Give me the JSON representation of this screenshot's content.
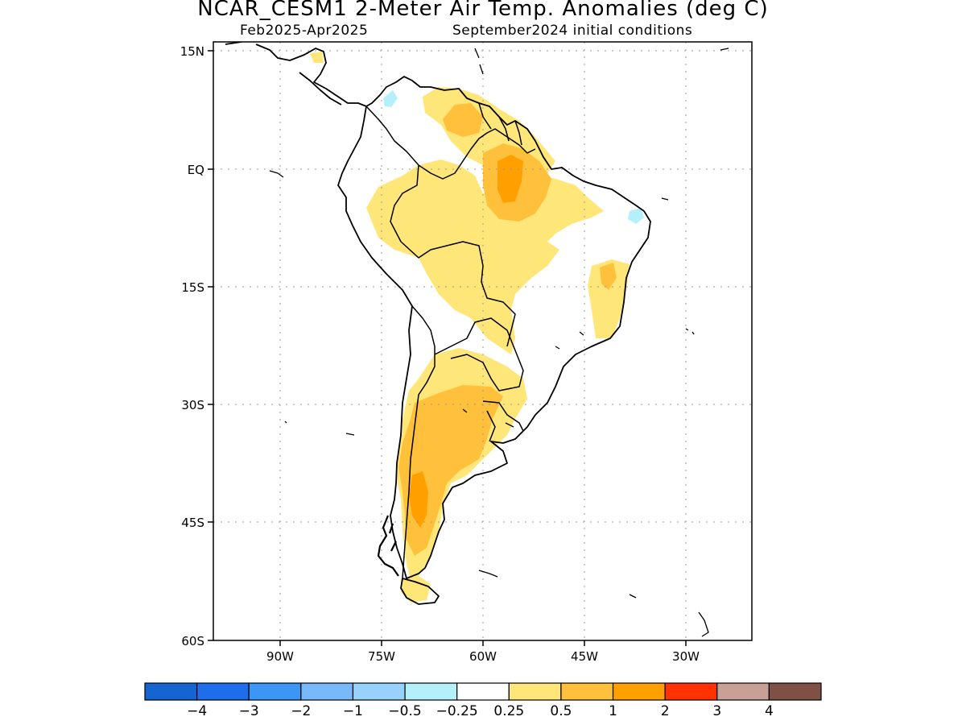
{
  "title": "NCAR_CESM1 2-Meter Air Temp. Anomalies (deg C)",
  "subtitle_period": "Feb2025-Apr2025",
  "subtitle_init": "September2024 initial conditions",
  "axes": {
    "lat_labels": [
      "15N",
      "EQ",
      "15S",
      "30S",
      "45S",
      "60S"
    ],
    "lon_labels": [
      "90W",
      "75W",
      "60W",
      "45W",
      "30W"
    ]
  },
  "colorbar": {
    "colors": [
      "#1464d2",
      "#1e6eeb",
      "#3c96f5",
      "#78b9fa",
      "#96d2fa",
      "#b4f0fa",
      "#ffffff",
      "#ffe678",
      "#ffc03c",
      "#ffa000",
      "#ff3200",
      "#c8a096",
      "#7f5045"
    ],
    "labels": [
      "-4",
      "-3",
      "-2",
      "-1",
      "-0.5",
      "-0.25",
      "0.25",
      "0.5",
      "1",
      "2",
      "3",
      "4"
    ]
  }
}
